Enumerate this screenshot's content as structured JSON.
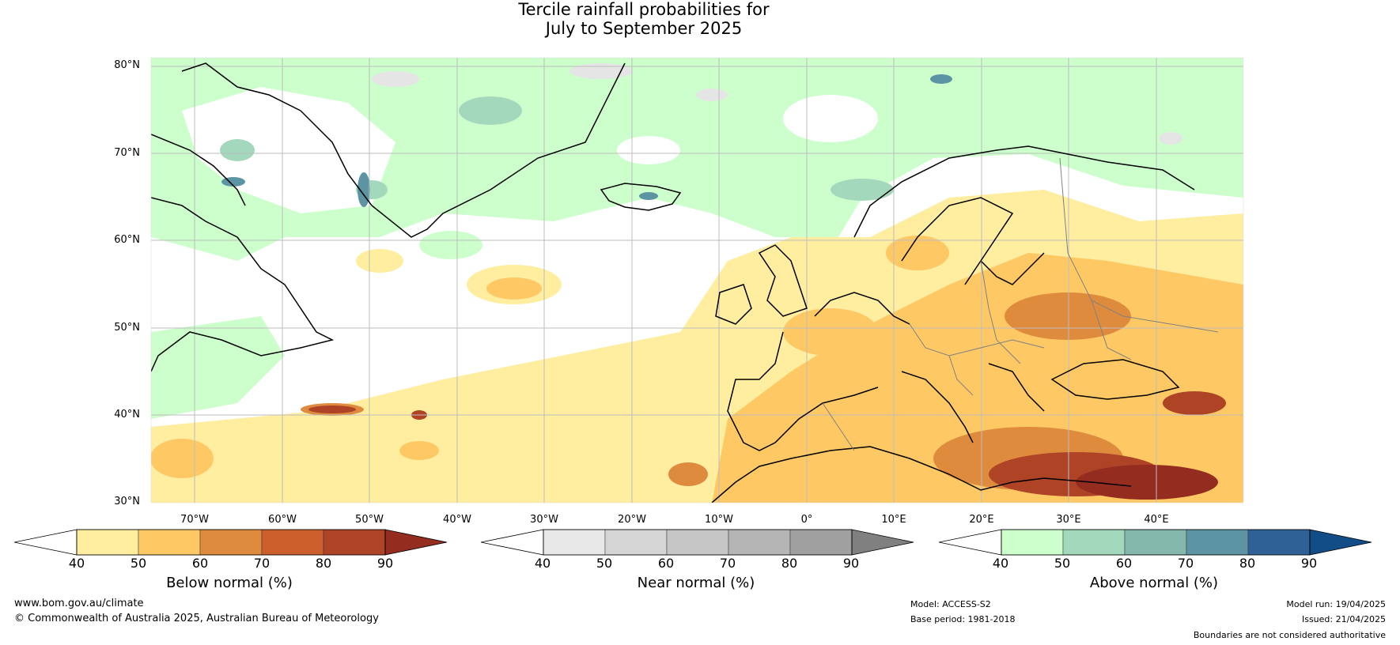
{
  "title": {
    "line1": "Tercile rainfall probabilities for",
    "line2": "July to September 2025"
  },
  "map": {
    "lat_labels": [
      "80°N",
      "70°N",
      "60°N",
      "50°N",
      "40°N",
      "30°N"
    ],
    "lon_labels": [
      "70°W",
      "60°W",
      "50°W",
      "40°W",
      "30°W",
      "20°W",
      "10°W",
      "0°",
      "10°E",
      "20°E",
      "30°E",
      "40°E"
    ],
    "lat_range": [
      30,
      81
    ],
    "lon_range": [
      -75,
      50
    ]
  },
  "colorbars": [
    {
      "title": "Below normal (%)",
      "ticks": [
        "40",
        "50",
        "60",
        "70",
        "80",
        "90"
      ],
      "colors": [
        "#ffeda0",
        "#fec965",
        "#df8b3e",
        "#cc5f2c",
        "#ae4326",
        "#942d1f"
      ]
    },
    {
      "title": "Near normal (%)",
      "ticks": [
        "40",
        "50",
        "60",
        "70",
        "80",
        "90"
      ],
      "colors": [
        "#e8e8e8",
        "#d5d5d5",
        "#c6c6c6",
        "#b5b5b5",
        "#a0a0a0",
        "#808080"
      ]
    },
    {
      "title": "Above normal (%)",
      "ticks": [
        "40",
        "50",
        "60",
        "70",
        "80",
        "90"
      ],
      "colors": [
        "#ccffcc",
        "#a4d8bd",
        "#84b8ad",
        "#5c94a3",
        "#2f6196",
        "#134d88"
      ]
    }
  ],
  "footer": {
    "website": "www.bom.gov.au/climate",
    "copyright": "© Commonwealth of Australia 2025, Australian Bureau of Meteorology",
    "model": "Model: ACCESS-S2",
    "base_period": "Base period: 1981-2018",
    "model_run": "Model run: 19/04/2025",
    "issued": "Issued: 21/04/2025",
    "disclaimer": "Boundaries are not considered authoritative"
  },
  "colors": {
    "coastline": "#000000",
    "borders": "#808080",
    "grid": "#bdbdbd"
  }
}
